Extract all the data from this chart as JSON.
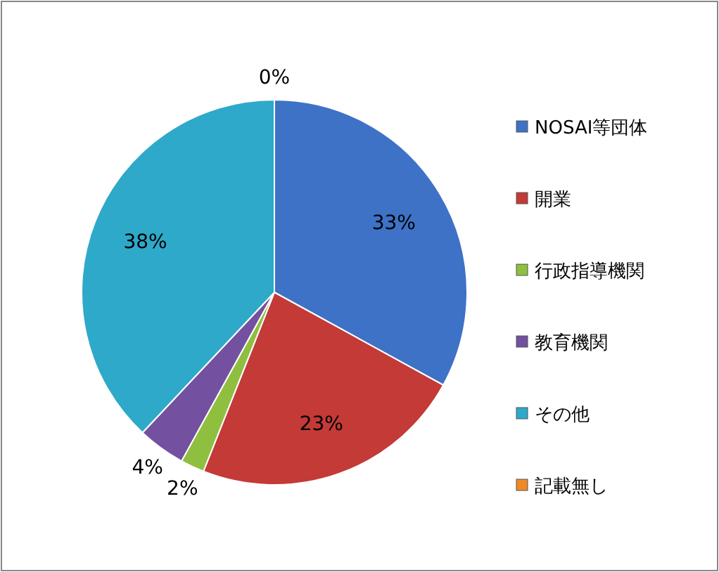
{
  "chart_data": {
    "type": "pie",
    "categories": [
      "NOSAI等団体",
      "開業",
      "行政指導機関",
      "教育機関",
      "その他",
      "記載無し"
    ],
    "values": [
      33,
      23,
      2,
      4,
      38,
      0
    ],
    "colors": [
      "#3d72c6",
      "#c33a37",
      "#8fbf3f",
      "#7450a0",
      "#2ea9c9",
      "#f08a24"
    ],
    "value_labels": [
      "33%",
      "23%",
      "2%",
      "4%",
      "38%",
      "0%"
    ],
    "legend": "right"
  }
}
